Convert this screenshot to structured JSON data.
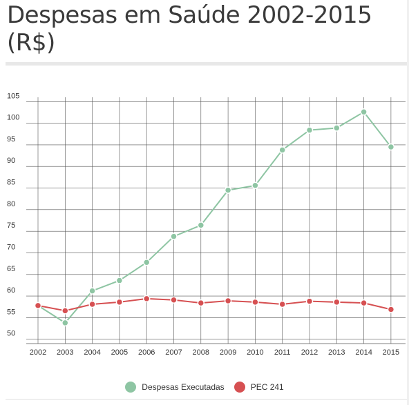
{
  "title": "Despesas em Saúde 2002-2015 (R$)",
  "chart_data": {
    "type": "line",
    "title": "Despesas em Saúde 2002-2015 (R$)",
    "xlabel": "",
    "ylabel": "",
    "x": [
      "2002",
      "2003",
      "2004",
      "2005",
      "2006",
      "2007",
      "2008",
      "2009",
      "2010",
      "2011",
      "2012",
      "2013",
      "2014",
      "2015"
    ],
    "ylim": [
      49,
      106
    ],
    "yticks": [
      50,
      55,
      60,
      65,
      70,
      75,
      80,
      85,
      90,
      95,
      100,
      105
    ],
    "grid": true,
    "legend_position": "bottom-center",
    "series": [
      {
        "name": "Despesas Executadas",
        "color": "#8ec5a3",
        "values": [
          57.8,
          53.8,
          61.2,
          63.6,
          67.8,
          73.8,
          76.4,
          84.5,
          85.6,
          93.8,
          98.4,
          98.9,
          102.6,
          94.5
        ]
      },
      {
        "name": "PEC 241",
        "color": "#d65052",
        "values": [
          57.8,
          56.6,
          58.1,
          58.6,
          59.4,
          59.1,
          58.4,
          58.9,
          58.6,
          58.1,
          58.8,
          58.6,
          58.4,
          56.9
        ]
      }
    ]
  }
}
